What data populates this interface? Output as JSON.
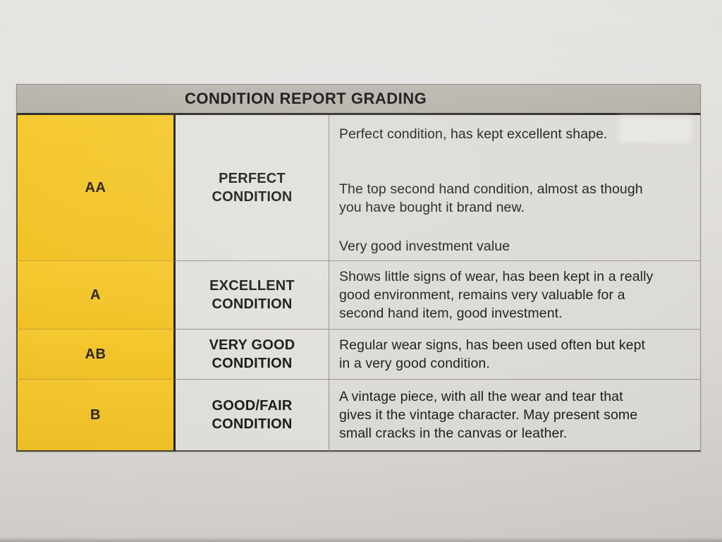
{
  "colors": {
    "grade_column_yellow": "#f4c52b",
    "header_gray": "#b8b4ad",
    "paper": "#dfddda",
    "cell_background": "#dddbd7",
    "text": "#21201d"
  },
  "table": {
    "title": "CONDITION REPORT GRADING",
    "rows": [
      {
        "grade": "AA",
        "label": "PERFECT\nCONDITION",
        "paragraphs": [
          "Perfect condition, has kept excellent shape.",
          "The top second hand condition, almost as though\nyou have bought it brand new.",
          "Very good investment value"
        ]
      },
      {
        "grade": "A",
        "label": "EXCELLENT\nCONDITION",
        "paragraphs": [
          "Shows little signs of wear, has been kept in a really\ngood environment, remains very valuable for a\nsecond hand item, good investment."
        ]
      },
      {
        "grade": "AB",
        "label": "VERY GOOD\nCONDITION",
        "paragraphs": [
          "Regular wear signs, has been used often but kept\nin a very good condition."
        ]
      },
      {
        "grade": "B",
        "label": "GOOD/FAIR\nCONDITION",
        "paragraphs": [
          "A vintage piece, with all the wear and tear that\ngives it the vintage character. May present some\nsmall cracks in the canvas or leather."
        ]
      }
    ]
  }
}
